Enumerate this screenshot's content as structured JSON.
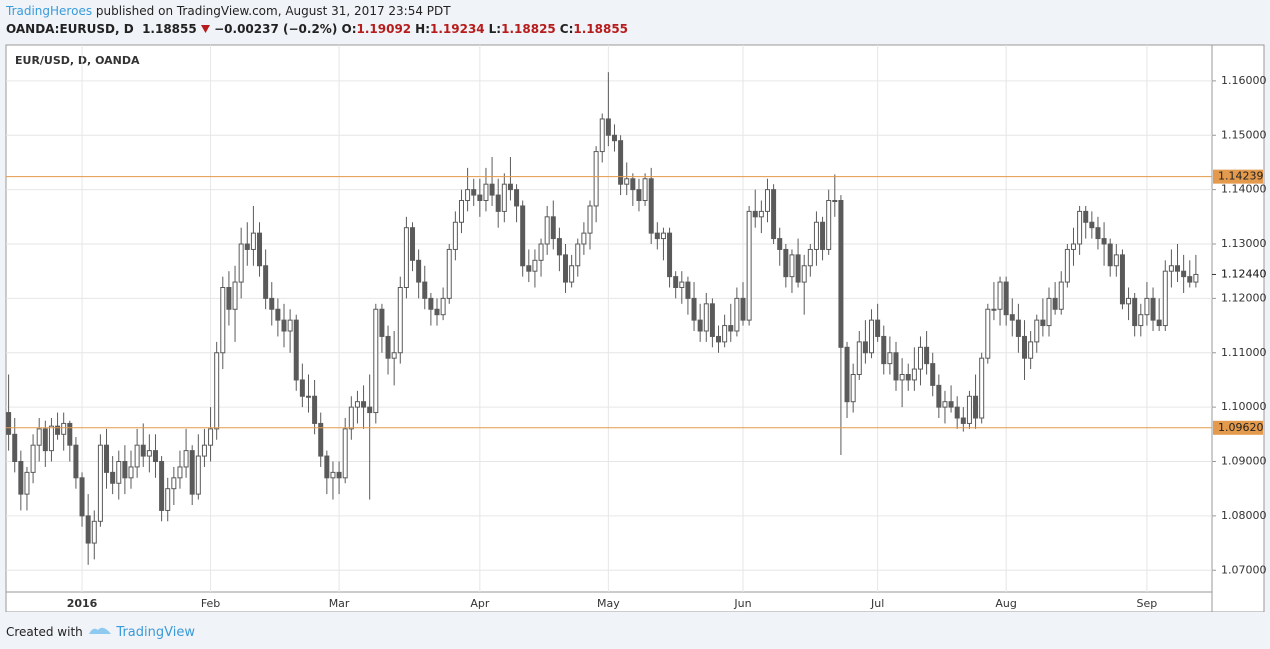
{
  "header": {
    "author": "TradingHeroes",
    "published": "published on TradingView.com, August 31, 2017 23:54 PDT",
    "symbol": "OANDA:EURUSD, D",
    "last": "1.18855",
    "change": "−0.00237 (−0.2%)",
    "ohlc": [
      {
        "label": "O:",
        "value": "1.19092"
      },
      {
        "label": "H:",
        "value": "1.19234"
      },
      {
        "label": "L:",
        "value": "1.18825"
      },
      {
        "label": "C:",
        "value": "1.18855"
      }
    ]
  },
  "footer": {
    "created": "Created with",
    "brand": "TradingView"
  },
  "chart_data": {
    "type": "candlestick",
    "title": "EUR/USD, D, OANDA",
    "categories": [
      null,
      null,
      null,
      null,
      null,
      null,
      null,
      null,
      null,
      null,
      null,
      null,
      "2016",
      null,
      null,
      null,
      null,
      null,
      null,
      null,
      null,
      null,
      null,
      null,
      null,
      null,
      null,
      null,
      null,
      null,
      null,
      null,
      null,
      "Feb",
      null,
      null,
      null,
      null,
      null,
      null,
      null,
      null,
      null,
      null,
      null,
      null,
      null,
      null,
      null,
      null,
      null,
      null,
      null,
      null,
      "Mar",
      null,
      null,
      null,
      null,
      null,
      null,
      null,
      null,
      null,
      null,
      null,
      null,
      null,
      null,
      null,
      null,
      null,
      null,
      null,
      null,
      null,
      null,
      "Apr",
      null,
      null,
      null,
      null,
      null,
      null,
      null,
      null,
      null,
      null,
      null,
      null,
      null,
      null,
      null,
      null,
      null,
      null,
      null,
      null,
      "May",
      null,
      null,
      null,
      null,
      null,
      null,
      null,
      null,
      null,
      null,
      null,
      null,
      null,
      null,
      null,
      null,
      null,
      null,
      null,
      null,
      null,
      "Jun",
      null,
      null,
      null,
      null,
      null,
      null,
      null,
      null,
      null,
      null,
      null,
      null,
      null,
      null,
      null,
      null,
      null,
      null,
      null,
      null,
      null,
      "Jul",
      null,
      null,
      null,
      null,
      null,
      null,
      null,
      null,
      null,
      null,
      null,
      null,
      null,
      null,
      null,
      null,
      null,
      null,
      null,
      null,
      "Aug",
      null,
      null,
      null,
      null,
      null,
      null,
      null,
      null,
      null,
      null,
      null,
      null,
      null,
      null,
      null,
      null,
      null,
      null,
      null,
      null,
      null,
      null,
      "Sep",
      null,
      null,
      null,
      null,
      null,
      null,
      null,
      null
    ],
    "ohlc": [
      [
        1.099,
        1.106,
        1.092,
        1.095
      ],
      [
        1.095,
        1.098,
        1.088,
        1.09
      ],
      [
        1.09,
        1.092,
        1.081,
        1.084
      ],
      [
        1.084,
        1.089,
        1.081,
        1.088
      ],
      [
        1.088,
        1.095,
        1.086,
        1.093
      ],
      [
        1.093,
        1.098,
        1.09,
        1.096
      ],
      [
        1.096,
        1.0975,
        1.089,
        1.092
      ],
      [
        1.092,
        1.098,
        1.09,
        1.0965
      ],
      [
        1.0965,
        1.099,
        1.094,
        1.095
      ],
      [
        1.095,
        1.099,
        1.092,
        1.097
      ],
      [
        1.097,
        1.0975,
        1.09,
        1.093
      ],
      [
        1.093,
        1.0945,
        1.085,
        1.087
      ],
      [
        1.087,
        1.088,
        1.078,
        1.08
      ],
      [
        1.08,
        1.084,
        1.071,
        1.075
      ],
      [
        1.075,
        1.081,
        1.072,
        1.079
      ],
      [
        1.079,
        1.095,
        1.078,
        1.093
      ],
      [
        1.093,
        1.096,
        1.085,
        1.088
      ],
      [
        1.088,
        1.091,
        1.084,
        1.086
      ],
      [
        1.086,
        1.092,
        1.083,
        1.09
      ],
      [
        1.09,
        1.093,
        1.084,
        1.087
      ],
      [
        1.087,
        1.092,
        1.085,
        1.089
      ],
      [
        1.089,
        1.096,
        1.087,
        1.093
      ],
      [
        1.093,
        1.097,
        1.089,
        1.091
      ],
      [
        1.091,
        1.095,
        1.088,
        1.092
      ],
      [
        1.092,
        1.095,
        1.087,
        1.09
      ],
      [
        1.09,
        1.091,
        1.079,
        1.081
      ],
      [
        1.081,
        1.087,
        1.079,
        1.085
      ],
      [
        1.085,
        1.089,
        1.082,
        1.087
      ],
      [
        1.087,
        1.092,
        1.085,
        1.089
      ],
      [
        1.089,
        1.096,
        1.087,
        1.092
      ],
      [
        1.092,
        1.093,
        1.082,
        1.084
      ],
      [
        1.084,
        1.095,
        1.083,
        1.091
      ],
      [
        1.091,
        1.096,
        1.089,
        1.093
      ],
      [
        1.093,
        1.1,
        1.09,
        1.096
      ],
      [
        1.096,
        1.112,
        1.094,
        1.11
      ],
      [
        1.11,
        1.124,
        1.107,
        1.122
      ],
      [
        1.122,
        1.125,
        1.115,
        1.118
      ],
      [
        1.118,
        1.126,
        1.112,
        1.123
      ],
      [
        1.123,
        1.133,
        1.12,
        1.13
      ],
      [
        1.13,
        1.134,
        1.126,
        1.129
      ],
      [
        1.129,
        1.137,
        1.126,
        1.132
      ],
      [
        1.132,
        1.134,
        1.124,
        1.126
      ],
      [
        1.126,
        1.129,
        1.118,
        1.12
      ],
      [
        1.12,
        1.123,
        1.115,
        1.118
      ],
      [
        1.118,
        1.12,
        1.113,
        1.116
      ],
      [
        1.116,
        1.119,
        1.111,
        1.114
      ],
      [
        1.114,
        1.118,
        1.11,
        1.116
      ],
      [
        1.116,
        1.117,
        1.103,
        1.105
      ],
      [
        1.105,
        1.108,
        1.1,
        1.102
      ],
      [
        1.102,
        1.106,
        1.099,
        1.102
      ],
      [
        1.102,
        1.105,
        1.095,
        1.097
      ],
      [
        1.097,
        1.099,
        1.089,
        1.091
      ],
      [
        1.091,
        1.092,
        1.084,
        1.087
      ],
      [
        1.087,
        1.09,
        1.083,
        1.088
      ],
      [
        1.088,
        1.09,
        1.084,
        1.087
      ],
      [
        1.087,
        1.098,
        1.086,
        1.096
      ],
      [
        1.096,
        1.102,
        1.094,
        1.1
      ],
      [
        1.1,
        1.103,
        1.097,
        1.101
      ],
      [
        1.101,
        1.104,
        1.096,
        1.1
      ],
      [
        1.1,
        1.106,
        1.083,
        1.099
      ],
      [
        1.099,
        1.119,
        1.097,
        1.118
      ],
      [
        1.118,
        1.119,
        1.11,
        1.113
      ],
      [
        1.113,
        1.115,
        1.106,
        1.109
      ],
      [
        1.109,
        1.114,
        1.104,
        1.11
      ],
      [
        1.11,
        1.124,
        1.108,
        1.122
      ],
      [
        1.122,
        1.135,
        1.12,
        1.133
      ],
      [
        1.133,
        1.134,
        1.125,
        1.127
      ],
      [
        1.127,
        1.129,
        1.12,
        1.123
      ],
      [
        1.123,
        1.126,
        1.118,
        1.12
      ],
      [
        1.12,
        1.121,
        1.115,
        1.118
      ],
      [
        1.118,
        1.12,
        1.115,
        1.117
      ],
      [
        1.117,
        1.122,
        1.116,
        1.12
      ],
      [
        1.12,
        1.13,
        1.119,
        1.129
      ],
      [
        1.129,
        1.136,
        1.127,
        1.134
      ],
      [
        1.134,
        1.14,
        1.132,
        1.138
      ],
      [
        1.138,
        1.144,
        1.136,
        1.14
      ],
      [
        1.14,
        1.142,
        1.137,
        1.139
      ],
      [
        1.139,
        1.142,
        1.135,
        1.138
      ],
      [
        1.138,
        1.144,
        1.136,
        1.141
      ],
      [
        1.141,
        1.146,
        1.137,
        1.139
      ],
      [
        1.139,
        1.142,
        1.133,
        1.136
      ],
      [
        1.136,
        1.143,
        1.134,
        1.141
      ],
      [
        1.141,
        1.146,
        1.138,
        1.14
      ],
      [
        1.14,
        1.141,
        1.134,
        1.137
      ],
      [
        1.137,
        1.138,
        1.124,
        1.126
      ],
      [
        1.126,
        1.129,
        1.123,
        1.125
      ],
      [
        1.125,
        1.129,
        1.122,
        1.127
      ],
      [
        1.127,
        1.131,
        1.124,
        1.13
      ],
      [
        1.13,
        1.137,
        1.128,
        1.135
      ],
      [
        1.135,
        1.138,
        1.129,
        1.131
      ],
      [
        1.131,
        1.133,
        1.125,
        1.128
      ],
      [
        1.128,
        1.13,
        1.121,
        1.123
      ],
      [
        1.123,
        1.128,
        1.122,
        1.126
      ],
      [
        1.126,
        1.131,
        1.124,
        1.13
      ],
      [
        1.13,
        1.134,
        1.128,
        1.132
      ],
      [
        1.132,
        1.138,
        1.129,
        1.137
      ],
      [
        1.137,
        1.148,
        1.134,
        1.147
      ],
      [
        1.147,
        1.154,
        1.145,
        1.153
      ],
      [
        1.153,
        1.1616,
        1.148,
        1.15
      ],
      [
        1.15,
        1.152,
        1.147,
        1.149
      ],
      [
        1.149,
        1.15,
        1.139,
        1.141
      ],
      [
        1.141,
        1.145,
        1.139,
        1.142
      ],
      [
        1.142,
        1.143,
        1.137,
        1.14
      ],
      [
        1.14,
        1.142,
        1.136,
        1.138
      ],
      [
        1.138,
        1.143,
        1.137,
        1.142
      ],
      [
        1.142,
        1.144,
        1.13,
        1.132
      ],
      [
        1.132,
        1.134,
        1.129,
        1.131
      ],
      [
        1.131,
        1.133,
        1.127,
        1.132
      ],
      [
        1.132,
        1.133,
        1.122,
        1.124
      ],
      [
        1.124,
        1.125,
        1.12,
        1.122
      ],
      [
        1.122,
        1.125,
        1.119,
        1.123
      ],
      [
        1.123,
        1.124,
        1.117,
        1.12
      ],
      [
        1.12,
        1.123,
        1.114,
        1.116
      ],
      [
        1.116,
        1.119,
        1.112,
        1.114
      ],
      [
        1.114,
        1.121,
        1.112,
        1.119
      ],
      [
        1.119,
        1.12,
        1.111,
        1.113
      ],
      [
        1.113,
        1.115,
        1.11,
        1.112
      ],
      [
        1.112,
        1.117,
        1.111,
        1.115
      ],
      [
        1.115,
        1.119,
        1.112,
        1.114
      ],
      [
        1.114,
        1.122,
        1.113,
        1.12
      ],
      [
        1.12,
        1.123,
        1.115,
        1.116
      ],
      [
        1.116,
        1.137,
        1.115,
        1.136
      ],
      [
        1.136,
        1.14,
        1.133,
        1.135
      ],
      [
        1.135,
        1.138,
        1.132,
        1.136
      ],
      [
        1.136,
        1.142,
        1.134,
        1.14
      ],
      [
        1.14,
        1.141,
        1.13,
        1.131
      ],
      [
        1.131,
        1.133,
        1.126,
        1.129
      ],
      [
        1.129,
        1.13,
        1.122,
        1.124
      ],
      [
        1.124,
        1.129,
        1.121,
        1.128
      ],
      [
        1.128,
        1.131,
        1.122,
        1.123
      ],
      [
        1.123,
        1.128,
        1.117,
        1.126
      ],
      [
        1.126,
        1.13,
        1.124,
        1.129
      ],
      [
        1.129,
        1.136,
        1.126,
        1.134
      ],
      [
        1.134,
        1.135,
        1.127,
        1.129
      ],
      [
        1.129,
        1.14,
        1.128,
        1.138
      ],
      [
        1.138,
        1.1428,
        1.135,
        1.138
      ],
      [
        1.138,
        1.139,
        1.0912,
        1.111
      ],
      [
        1.111,
        1.112,
        1.098,
        1.101
      ],
      [
        1.101,
        1.108,
        1.099,
        1.106
      ],
      [
        1.106,
        1.114,
        1.105,
        1.112
      ],
      [
        1.112,
        1.116,
        1.108,
        1.11
      ],
      [
        1.11,
        1.118,
        1.109,
        1.116
      ],
      [
        1.116,
        1.119,
        1.112,
        1.113
      ],
      [
        1.113,
        1.115,
        1.106,
        1.108
      ],
      [
        1.108,
        1.113,
        1.106,
        1.11
      ],
      [
        1.11,
        1.112,
        1.103,
        1.105
      ],
      [
        1.105,
        1.109,
        1.1,
        1.106
      ],
      [
        1.106,
        1.108,
        1.103,
        1.105
      ],
      [
        1.105,
        1.111,
        1.103,
        1.107
      ],
      [
        1.107,
        1.113,
        1.104,
        1.111
      ],
      [
        1.111,
        1.114,
        1.106,
        1.108
      ],
      [
        1.108,
        1.11,
        1.102,
        1.104
      ],
      [
        1.104,
        1.106,
        1.098,
        1.1
      ],
      [
        1.1,
        1.103,
        1.097,
        1.101
      ],
      [
        1.101,
        1.104,
        1.099,
        1.1
      ],
      [
        1.1,
        1.102,
        1.096,
        1.098
      ],
      [
        1.098,
        1.1,
        1.0955,
        1.097
      ],
      [
        1.097,
        1.103,
        1.096,
        1.102
      ],
      [
        1.102,
        1.106,
        1.096,
        1.098
      ],
      [
        1.098,
        1.11,
        1.097,
        1.109
      ],
      [
        1.109,
        1.119,
        1.108,
        1.118
      ],
      [
        1.118,
        1.123,
        1.116,
        1.118
      ],
      [
        1.118,
        1.124,
        1.115,
        1.123
      ],
      [
        1.123,
        1.124,
        1.115,
        1.117
      ],
      [
        1.117,
        1.12,
        1.113,
        1.116
      ],
      [
        1.116,
        1.119,
        1.11,
        1.113
      ],
      [
        1.113,
        1.116,
        1.105,
        1.109
      ],
      [
        1.109,
        1.114,
        1.107,
        1.112
      ],
      [
        1.112,
        1.117,
        1.11,
        1.116
      ],
      [
        1.116,
        1.12,
        1.113,
        1.115
      ],
      [
        1.115,
        1.122,
        1.113,
        1.12
      ],
      [
        1.12,
        1.123,
        1.117,
        1.118
      ],
      [
        1.118,
        1.125,
        1.117,
        1.123
      ],
      [
        1.123,
        1.13,
        1.122,
        1.129
      ],
      [
        1.129,
        1.133,
        1.126,
        1.13
      ],
      [
        1.13,
        1.137,
        1.128,
        1.136
      ],
      [
        1.136,
        1.137,
        1.131,
        1.134
      ],
      [
        1.134,
        1.136,
        1.131,
        1.133
      ],
      [
        1.133,
        1.135,
        1.129,
        1.131
      ],
      [
        1.131,
        1.134,
        1.126,
        1.13
      ],
      [
        1.13,
        1.131,
        1.124,
        1.126
      ],
      [
        1.126,
        1.13,
        1.124,
        1.128
      ],
      [
        1.128,
        1.129,
        1.118,
        1.119
      ],
      [
        1.119,
        1.122,
        1.116,
        1.12
      ],
      [
        1.12,
        1.121,
        1.113,
        1.115
      ],
      [
        1.115,
        1.119,
        1.113,
        1.117
      ],
      [
        1.117,
        1.123,
        1.115,
        1.12
      ],
      [
        1.12,
        1.122,
        1.114,
        1.116
      ],
      [
        1.116,
        1.12,
        1.114,
        1.115
      ],
      [
        1.115,
        1.127,
        1.114,
        1.125
      ],
      [
        1.125,
        1.129,
        1.122,
        1.126
      ],
      [
        1.126,
        1.13,
        1.123,
        1.125
      ],
      [
        1.125,
        1.128,
        1.121,
        1.124
      ],
      [
        1.124,
        1.127,
        1.122,
        1.123
      ],
      [
        1.123,
        1.128,
        1.122,
        1.1244
      ]
    ],
    "ylim": [
      1.066,
      1.1666
    ],
    "yticks": [
      {
        "value": 1.07,
        "label": "1.07000"
      },
      {
        "value": 1.08,
        "label": "1.08000"
      },
      {
        "value": 1.09,
        "label": "1.09000"
      },
      {
        "value": 1.1,
        "label": "1.10000"
      },
      {
        "value": 1.11,
        "label": "1.11000"
      },
      {
        "value": 1.12,
        "label": "1.12000"
      },
      {
        "value": 1.13,
        "label": "1.13000"
      },
      {
        "value": 1.14,
        "label": "1.14000"
      },
      {
        "value": 1.15,
        "label": "1.15000"
      },
      {
        "value": 1.16,
        "label": "1.16000"
      }
    ],
    "levels": [
      {
        "value": 1.14239,
        "label": "1.14239"
      },
      {
        "value": 1.0962,
        "label": "1.09620"
      }
    ],
    "last_price": {
      "value": 1.1244,
      "label": "1.12440"
    },
    "colors": {
      "bear": "#5a5a5a",
      "bull": "#ffffff",
      "outline": "#5a5a5a",
      "level": "#e39a4c"
    },
    "grid": true
  }
}
